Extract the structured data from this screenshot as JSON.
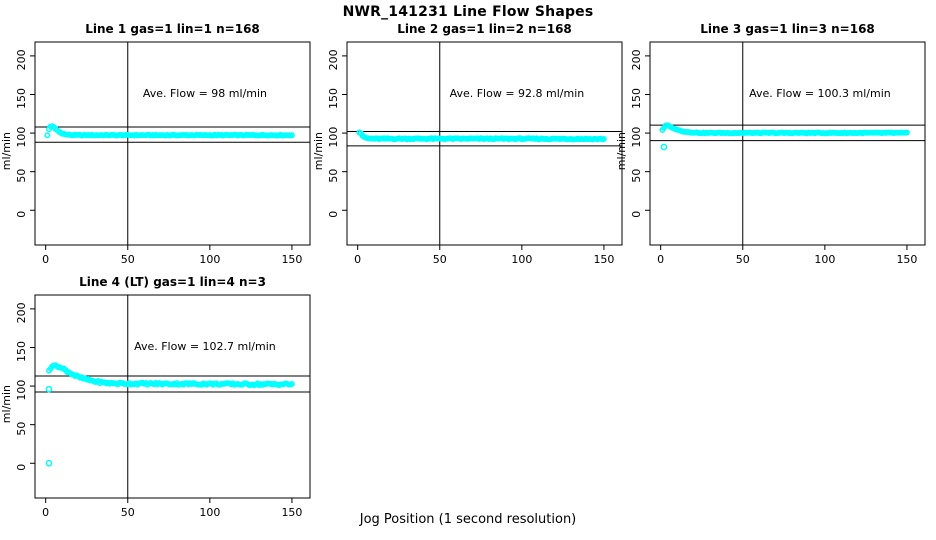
{
  "title": "NWR_141231  Line Flow Shapes",
  "xlabel": "Jog Position (1 second resolution)",
  "colors": {
    "points": "#00FFFF",
    "axis": "#000000",
    "background": "#FFFFFF"
  },
  "axes": {
    "ylabel": "ml/min",
    "x_ticks": [
      0,
      50,
      100,
      150
    ],
    "y_ticks": [
      0,
      50,
      100,
      150,
      200
    ],
    "x_range": [
      -6.5,
      161
    ],
    "y_range": [
      -45,
      218
    ],
    "vline_x": 50
  },
  "chart_data": [
    {
      "type": "scatter",
      "title": "Line 1 gas=1 lin=1 n=168",
      "annotation": "Ave. Flow =  98  ml/min",
      "ave_flow": 98,
      "hlines": [
        107.8,
        88.2
      ],
      "vline": 50,
      "noise": 0.5,
      "keypoints": [
        [
          1,
          97
        ],
        [
          2,
          105
        ],
        [
          3,
          108.5
        ],
        [
          4,
          109
        ],
        [
          5,
          107.5
        ],
        [
          6,
          105.5
        ],
        [
          8,
          102
        ],
        [
          10,
          99.5
        ],
        [
          12,
          98.3
        ],
        [
          15,
          97.6
        ],
        [
          20,
          97.3
        ],
        [
          150,
          97.3
        ]
      ],
      "outliers": []
    },
    {
      "type": "scatter",
      "title": "Line 2 gas=1 lin=2 n=168",
      "annotation": "Ave. Flow =  92.8  ml/min",
      "ave_flow": 92.8,
      "hlines": [
        102.1,
        83.5
      ],
      "vline": 50,
      "noise": 0.7,
      "keypoints": [
        [
          1,
          101
        ],
        [
          2,
          100
        ],
        [
          3,
          96.5
        ],
        [
          4,
          94.8
        ],
        [
          5,
          93.8
        ],
        [
          7,
          93
        ],
        [
          10,
          92.7
        ],
        [
          100,
          92.7
        ],
        [
          150,
          92.3
        ]
      ],
      "outliers": []
    },
    {
      "type": "scatter",
      "title": "Line 3 gas=1 lin=3 n=168",
      "annotation": "Ave. Flow =  100.3  ml/min",
      "ave_flow": 100.3,
      "hlines": [
        110.3,
        90.3
      ],
      "vline": 50,
      "noise": 0.5,
      "keypoints": [
        [
          1,
          104
        ],
        [
          3,
          109.5
        ],
        [
          4,
          110
        ],
        [
          5,
          109.3
        ],
        [
          6,
          108
        ],
        [
          8,
          106
        ],
        [
          10,
          104.3
        ],
        [
          13,
          102.5
        ],
        [
          16,
          101.5
        ],
        [
          20,
          100.7
        ],
        [
          25,
          100.2
        ],
        [
          150,
          100.2
        ]
      ],
      "outliers": [
        [
          2,
          82
        ]
      ]
    },
    {
      "type": "scatter",
      "title": "Line 4 (LT) gas=1 lin=4 n=3",
      "annotation": "Ave. Flow =  102.7  ml/min",
      "ave_flow": 102.7,
      "hlines": [
        113.0,
        92.4
      ],
      "vline": 50,
      "noise": 1.3,
      "keypoints": [
        [
          2,
          120
        ],
        [
          3,
          123
        ],
        [
          4,
          126
        ],
        [
          5,
          127
        ],
        [
          6,
          126.5
        ],
        [
          7,
          125.5
        ],
        [
          9,
          124
        ],
        [
          11,
          122
        ],
        [
          13,
          119.5
        ],
        [
          15,
          117
        ],
        [
          18,
          113.5
        ],
        [
          21,
          111
        ],
        [
          25,
          108.5
        ],
        [
          30,
          106
        ],
        [
          35,
          104.5
        ],
        [
          40,
          103.6
        ],
        [
          50,
          103.2
        ],
        [
          70,
          103
        ],
        [
          100,
          102.8
        ],
        [
          130,
          102.3
        ],
        [
          150,
          102.5
        ]
      ],
      "outliers": [
        [
          2,
          0
        ],
        [
          2,
          96
        ]
      ]
    }
  ]
}
